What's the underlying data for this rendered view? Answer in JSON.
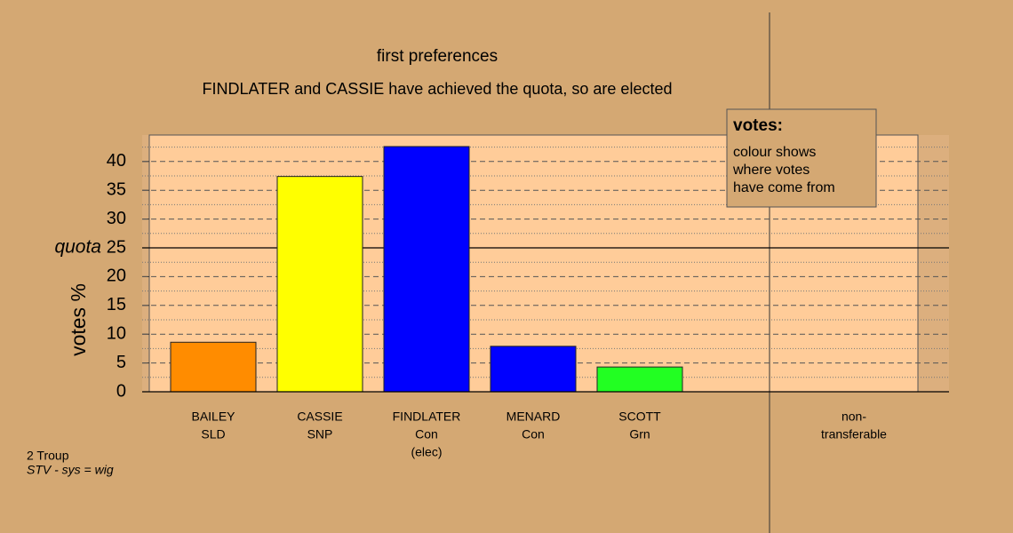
{
  "chart_data": {
    "type": "bar",
    "title": "first preferences",
    "subtitle": "FINDLATER and CASSIE have achieved the quota, so are elected",
    "y_label": "votes %",
    "categories": [
      [
        "BAILEY",
        "SLD"
      ],
      [
        "CASSIE",
        "SNP"
      ],
      [
        "FINDLATER",
        "Con",
        "(elec)"
      ],
      [
        "MENARD",
        "Con"
      ],
      [
        "SCOTT",
        "Grn"
      ]
    ],
    "values": [
      8.6,
      37.4,
      42.6,
      7.9,
      4.3
    ],
    "colors": [
      "#ff8c00",
      "#ffff00",
      "#0000ff",
      "#0000ff",
      "#22ff22"
    ],
    "nontransferable_label": [
      "non-",
      "transferable"
    ],
    "ylim": [
      0,
      44.6
    ],
    "yticks": [
      0,
      5,
      10,
      15,
      20,
      25,
      30,
      35,
      40
    ],
    "yminor": [
      2.5,
      7.5,
      12.5,
      17.5,
      22.5,
      27.5,
      32.5,
      37.5,
      42.5
    ],
    "quota": 25,
    "quota_label": "quota",
    "legend": {
      "title": "votes:",
      "lines": [
        "colour shows",
        "where votes",
        "have come from"
      ]
    },
    "footnote": [
      "2 Troup",
      "STV - sys = wig"
    ]
  }
}
